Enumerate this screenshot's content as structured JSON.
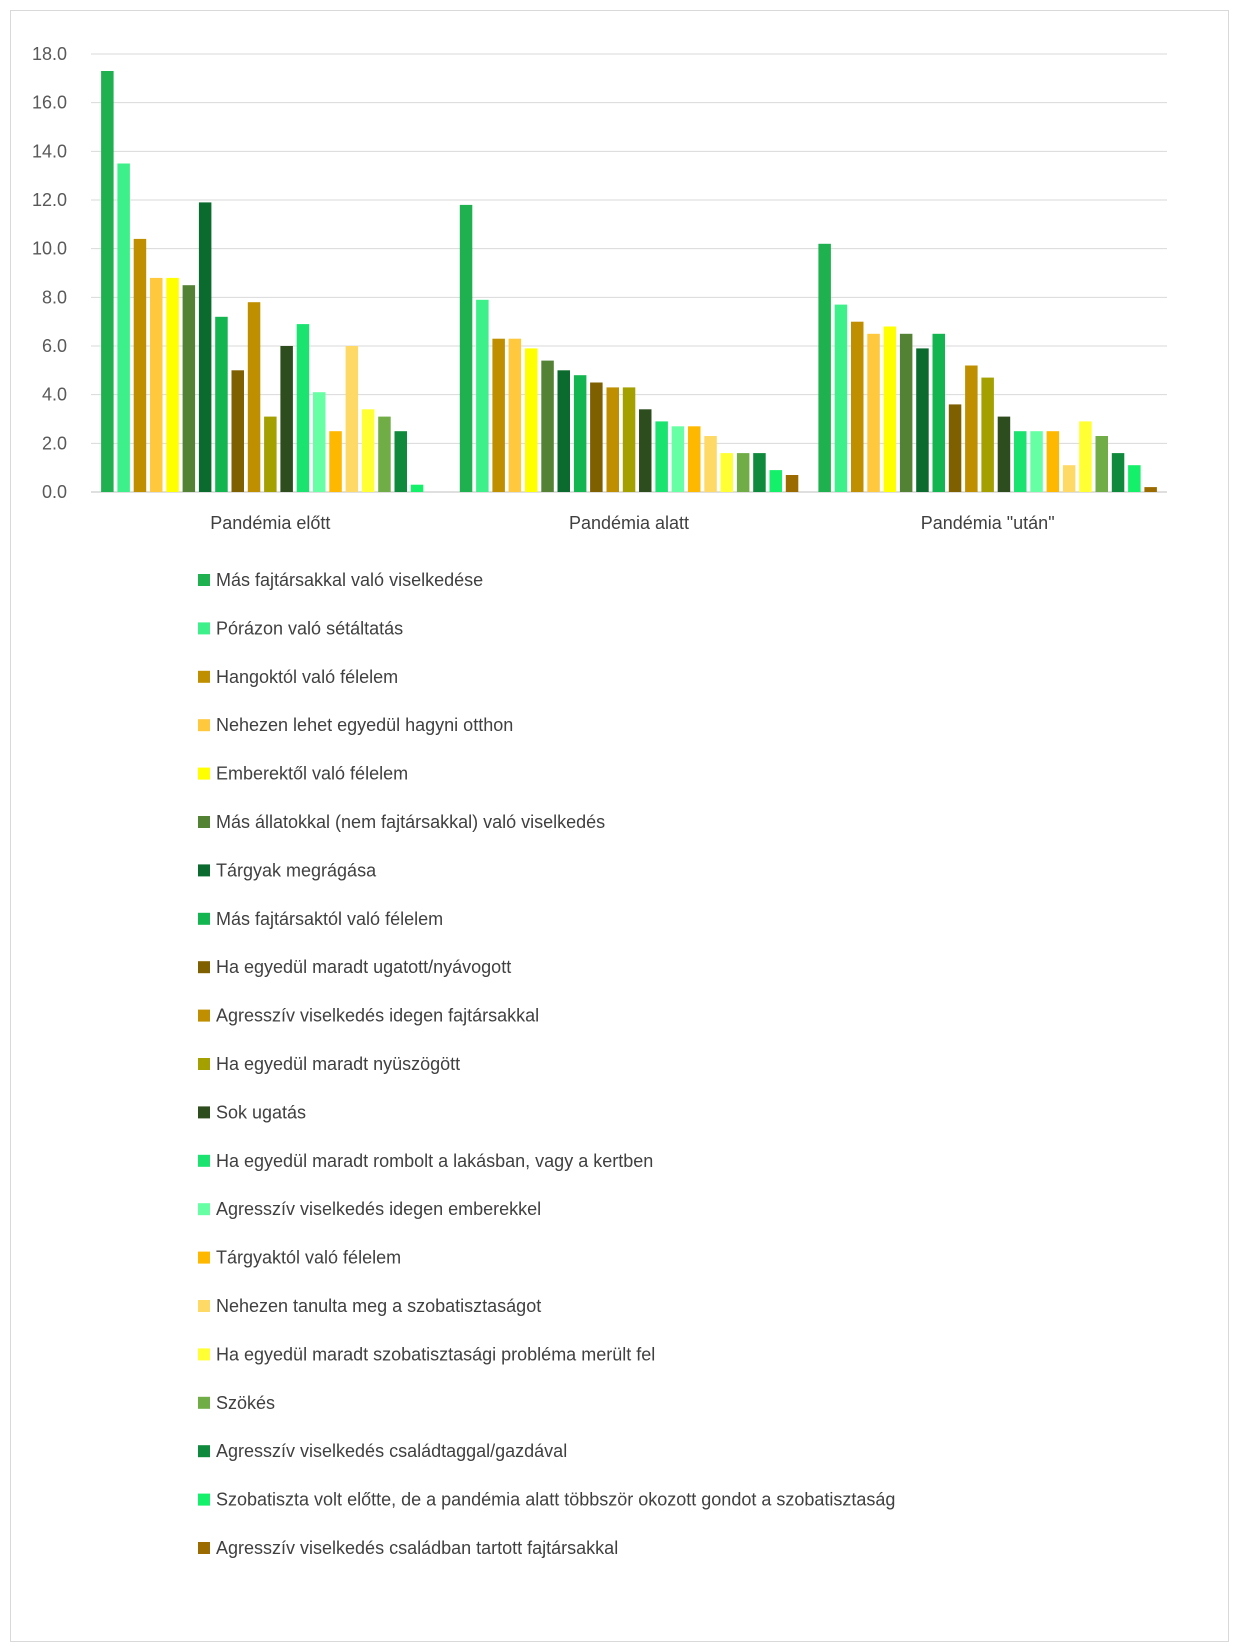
{
  "chart_data": {
    "type": "bar",
    "title": "",
    "xlabel": "",
    "ylabel": "",
    "ylim": [
      0,
      18
    ],
    "yticks": [
      "0.0",
      "2.0",
      "4.0",
      "6.0",
      "8.0",
      "10.0",
      "12.0",
      "14.0",
      "16.0",
      "18.0"
    ],
    "grid": true,
    "legend_position": "bottom",
    "categories": [
      "Pandémia előtt",
      "Pandémia alatt",
      "Pandémia \"után\""
    ],
    "series": [
      {
        "name": "Más fajtársakkal való viselkedése",
        "color": "#1fb04f",
        "values": [
          17.3,
          11.8,
          10.2
        ]
      },
      {
        "name": "Pórázon való sétáltatás",
        "color": "#3ef08a",
        "values": [
          13.5,
          7.9,
          7.7
        ]
      },
      {
        "name": "Hangoktól való félelem",
        "color": "#bf8f00",
        "values": [
          10.4,
          6.3,
          7.0
        ]
      },
      {
        "name": "Nehezen lehet egyedül hagyni otthon",
        "color": "#ffc83d",
        "values": [
          8.8,
          6.3,
          6.5
        ]
      },
      {
        "name": "Emberektől való félelem",
        "color": "#ffff00",
        "values": [
          8.8,
          5.9,
          6.8
        ]
      },
      {
        "name": "Más állatokkal (nem fajtársakkal) való viselkedés",
        "color": "#548235",
        "values": [
          8.5,
          5.4,
          6.5
        ]
      },
      {
        "name": "Tárgyak megrágása",
        "color": "#0b6b2e",
        "values": [
          11.9,
          5.0,
          5.9
        ]
      },
      {
        "name": "Más fajtársaktól való félelem",
        "color": "#12b550",
        "values": [
          7.2,
          4.8,
          6.5
        ]
      },
      {
        "name": "Ha egyedül maradt ugatott/nyávogott",
        "color": "#7f6000",
        "values": [
          5.0,
          4.5,
          3.6
        ]
      },
      {
        "name": "Agresszív viselkedés idegen fajtársakkal",
        "color": "#bf8f00",
        "values": [
          7.8,
          4.3,
          5.2
        ]
      },
      {
        "name": "Ha egyedül maradt nyüszögött",
        "color": "#a3a000",
        "values": [
          3.1,
          4.3,
          4.7
        ]
      },
      {
        "name": "Sok ugatás",
        "color": "#2e4d1f",
        "values": [
          6.0,
          3.4,
          3.1
        ]
      },
      {
        "name": "Ha egyedül maradt rombolt a lakásban, vagy a kertben",
        "color": "#1ae370",
        "values": [
          6.9,
          2.9,
          2.5
        ]
      },
      {
        "name": "Agresszív viselkedés idegen emberekkel",
        "color": "#66ffa3",
        "values": [
          4.1,
          2.7,
          2.5
        ]
      },
      {
        "name": "Tárgyaktól való félelem",
        "color": "#ffb800",
        "values": [
          2.5,
          2.7,
          2.5
        ]
      },
      {
        "name": "Nehezen tanulta meg a szobatisztaságot",
        "color": "#ffd966",
        "values": [
          6.0,
          2.3,
          1.1
        ]
      },
      {
        "name": "Ha egyedül maradt szobatisztasági probléma merült fel",
        "color": "#ffff33",
        "values": [
          3.4,
          1.6,
          2.9
        ]
      },
      {
        "name": "Szökés",
        "color": "#70ad47",
        "values": [
          3.1,
          1.6,
          2.3
        ]
      },
      {
        "name": "Agresszív viselkedés családtaggal/gazdával",
        "color": "#0f8a3c",
        "values": [
          2.5,
          1.6,
          1.6
        ]
      },
      {
        "name": "Szobatiszta volt előtte, de a pandémia alatt többször okozott gondot a szobatisztaság",
        "color": "#14f06a",
        "values": [
          0.3,
          0.9,
          1.1
        ]
      },
      {
        "name": "Agresszív viselkedés családban tartott fajtársakkal",
        "color": "#9c6b00",
        "values": [
          0.0,
          0.7,
          0.2
        ]
      }
    ]
  }
}
